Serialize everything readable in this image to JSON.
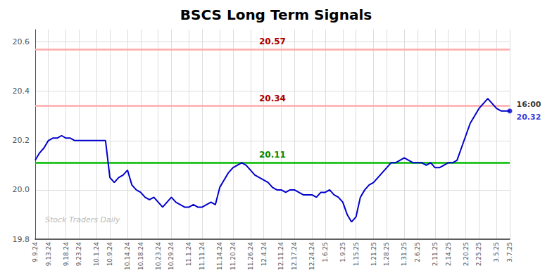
{
  "chart_data": {
    "type": "line",
    "title": "BSCS Long Term Signals",
    "categories": [
      "9.9.24",
      null,
      null,
      "9.13.24",
      null,
      null,
      null,
      "9.18.24",
      null,
      null,
      "9.23.24",
      null,
      null,
      null,
      "10.1.24",
      null,
      null,
      "10.9.24",
      null,
      null,
      null,
      "10.14.24",
      null,
      null,
      "10.18.24",
      null,
      null,
      null,
      "10.23.24",
      null,
      null,
      "10.29.24",
      null,
      null,
      null,
      "11.1.24",
      null,
      null,
      "11.11.24",
      null,
      null,
      null,
      "11.14.24",
      null,
      null,
      "11.20.24",
      null,
      null,
      null,
      "11.26.24",
      null,
      null,
      "12.4.24",
      null,
      null,
      null,
      "12.11.24",
      null,
      null,
      "12.17.24",
      null,
      null,
      null,
      "12.24.24",
      null,
      null,
      "1.6.25",
      null,
      null,
      null,
      "1.9.25",
      null,
      null,
      "1.15.25",
      null,
      null,
      null,
      "1.21.25",
      null,
      null,
      "1.28.25",
      null,
      null,
      null,
      "1.31.25",
      null,
      null,
      "2.6.25",
      null,
      null,
      null,
      "2.11.25",
      null,
      null,
      "2.14.25",
      null,
      null,
      null,
      "2.20.25",
      null,
      null,
      "2.25.25",
      null,
      null,
      null,
      "3.5.25",
      null,
      null,
      "3.7.25"
    ],
    "values": [
      20.12,
      20.15,
      20.17,
      20.2,
      20.21,
      20.21,
      20.22,
      20.21,
      20.21,
      20.2,
      20.2,
      20.2,
      20.2,
      20.2,
      20.2,
      20.2,
      20.2,
      20.05,
      20.03,
      20.05,
      20.06,
      20.08,
      20.02,
      20.0,
      19.99,
      19.97,
      19.96,
      19.97,
      19.95,
      19.93,
      19.95,
      19.97,
      19.95,
      19.94,
      19.93,
      19.93,
      19.94,
      19.93,
      19.93,
      19.94,
      19.95,
      19.94,
      20.01,
      20.04,
      20.07,
      20.09,
      20.1,
      20.11,
      20.1,
      20.08,
      20.06,
      20.05,
      20.04,
      20.03,
      20.01,
      20.0,
      20.0,
      19.99,
      20.0,
      20.0,
      19.99,
      19.98,
      19.98,
      19.98,
      19.97,
      19.99,
      19.99,
      20.0,
      19.98,
      19.97,
      19.95,
      19.9,
      19.87,
      19.89,
      19.97,
      20.0,
      20.02,
      20.03,
      20.05,
      20.07,
      20.09,
      20.11,
      20.11,
      20.12,
      20.13,
      20.12,
      20.11,
      20.11,
      20.11,
      20.1,
      20.11,
      20.09,
      20.09,
      20.1,
      20.11,
      20.11,
      20.12,
      20.17,
      20.22,
      20.27,
      20.3,
      20.33,
      20.35,
      20.37,
      20.35,
      20.33,
      20.32,
      20.32,
      20.32
    ],
    "color": "#0000cc",
    "ylim": [
      19.8,
      20.65
    ],
    "yticks": [
      19.8,
      {
        "value": 20.0,
        "label": "20.0"
      },
      20.2,
      20.4,
      20.6
    ],
    "grid": true,
    "reference_lines": [
      {
        "value": 20.57,
        "label": "20.57",
        "color": "#ffaaaa",
        "label_color": "#aa0000"
      },
      {
        "value": 20.34,
        "label": "20.34",
        "color": "#ffaaaa",
        "label_color": "#aa0000"
      },
      {
        "value": 20.11,
        "label": "20.11",
        "color": "#00bb00",
        "label_color": "#008800"
      }
    ],
    "last_point_color": "#0000cc",
    "annotations": [
      {
        "text": "16:00",
        "color": "#000000"
      },
      {
        "text": "20.32",
        "color": "#0000cc"
      }
    ],
    "watermark": {
      "text": "Stock Traders Daily",
      "color": "#bbbbbb"
    }
  }
}
